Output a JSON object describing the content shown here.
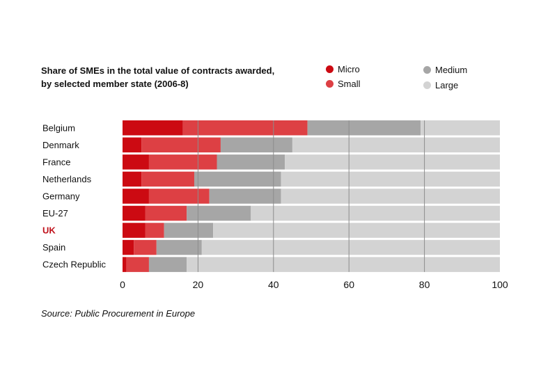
{
  "chart_data": {
    "type": "bar",
    "orientation": "horizontal",
    "stacked": true,
    "title": "Share of SMEs in the total value of contracts awarded,",
    "subtitle": "by selected member state (2006-8)",
    "xlabel": "",
    "ylabel": "",
    "xlim": [
      0,
      100
    ],
    "x_ticks": [
      0,
      20,
      40,
      60,
      80,
      100
    ],
    "grid": true,
    "legend_position": "top-right",
    "categories": [
      "Belgium",
      "Denmark",
      "France",
      "Netherlands",
      "Germany",
      "EU-27",
      "UK",
      "Spain",
      "Czech Republic"
    ],
    "highlight_category": "UK",
    "series": [
      {
        "name": "Micro",
        "color": "#cc0a12",
        "values": [
          16,
          5,
          7,
          5,
          7,
          6,
          6,
          3,
          1
        ]
      },
      {
        "name": "Small",
        "color": "#dd4044",
        "values": [
          33,
          21,
          18,
          14,
          16,
          11,
          5,
          6,
          6
        ]
      },
      {
        "name": "Medium",
        "color": "#a6a6a6",
        "values": [
          30,
          19,
          18,
          23,
          19,
          17,
          13,
          12,
          10
        ]
      },
      {
        "name": "Large",
        "color": "#d3d3d3",
        "values": [
          21,
          55,
          57,
          58,
          58,
          66,
          76,
          79,
          83
        ]
      }
    ],
    "source": "Source: Public Procurement in Europe"
  },
  "colors": {
    "highlight_text": "#c0121c",
    "gridline": "#8c8c8c"
  }
}
